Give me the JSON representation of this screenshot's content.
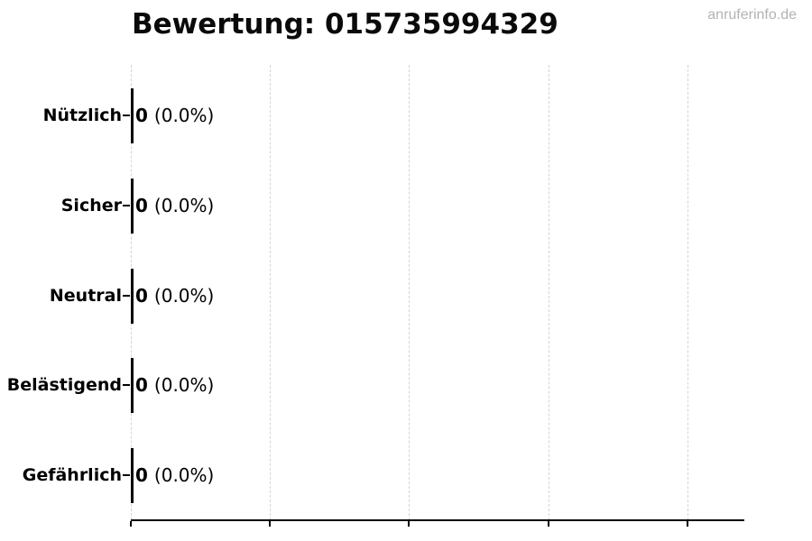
{
  "watermark": "anruferinfo.de",
  "chart_data": {
    "type": "bar",
    "orientation": "horizontal",
    "title": "Bewertung: 015735994329",
    "categories": [
      "Nützlich",
      "Sicher",
      "Neutral",
      "Belästigend",
      "Gefährlich"
    ],
    "values": [
      0,
      0,
      0,
      0,
      0
    ],
    "value_labels": [
      "0",
      "0",
      "0",
      "0",
      "0"
    ],
    "percent_labels": [
      "(0.0%)",
      "(0.0%)",
      "(0.0%)",
      "(0.0%)",
      "(0.0%)"
    ],
    "xlim": [
      0,
      4.4
    ],
    "x_tick_count": 5,
    "x_tick_labels": [],
    "grid": "vertical-dashed",
    "legend": "none",
    "colors": {
      "text": "#000000",
      "bar_edge": "#000000",
      "gridline": "#d4d4d4",
      "axis": "#000000",
      "watermark": "#b3b3b3",
      "background": "#ffffff"
    }
  }
}
